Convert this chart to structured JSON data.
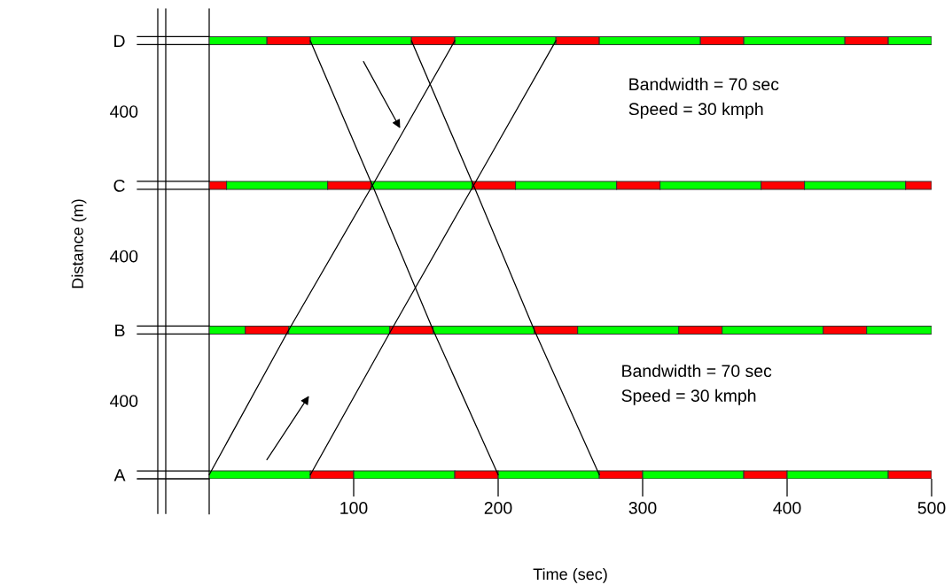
{
  "chart_data": {
    "type": "bar",
    "orientation": "horizontal",
    "stacked": true,
    "xlabel": "Time (sec)",
    "ylabel": "Distance (m)",
    "categories": [
      "D",
      "C",
      "B",
      "A"
    ],
    "xlim": [
      0,
      500
    ],
    "xticks": [
      100,
      200,
      300,
      400,
      500
    ],
    "series": [
      {
        "colors": [
          "#00ff00",
          "#ff0000",
          "#00ff00",
          "#00ff00"
        ],
        "values": [
          40,
          12,
          25,
          70
        ]
      },
      {
        "colors": [
          "#ff0000",
          "#00ff00",
          "#ff0000",
          "#ff0000"
        ],
        "values": [
          30,
          70,
          30,
          30
        ]
      },
      {
        "colors": [
          "#00ff00",
          "#ff0000",
          "#00ff00",
          "#00ff00"
        ],
        "values": [
          70,
          30,
          70,
          70
        ]
      },
      {
        "colors": [
          "#ff0000",
          "#00ff00",
          "#ff0000",
          "#ff0000"
        ],
        "values": [
          30,
          70,
          30,
          30
        ]
      },
      {
        "colors": [
          "#00ff00",
          "#ff0000",
          "#00ff00",
          "#00ff00"
        ],
        "values": [
          70,
          30,
          70,
          70
        ]
      },
      {
        "colors": [
          "#ff0000",
          "#00ff00",
          "#ff0000",
          "#ff0000"
        ],
        "values": [
          30,
          70,
          30,
          30
        ]
      },
      {
        "colors": [
          "#00ff00",
          "#ff0000",
          "#00ff00",
          "#00ff00"
        ],
        "values": [
          70,
          30,
          70,
          70
        ]
      },
      {
        "colors": [
          "#ff0000",
          "#00ff00",
          "#ff0000",
          "#ff0000"
        ],
        "values": [
          30,
          70,
          30,
          30
        ]
      },
      {
        "colors": [
          "#00ff00",
          "#ff0000",
          "#00ff00",
          "#00ff00"
        ],
        "values": [
          70,
          30,
          70,
          70
        ]
      },
      {
        "colors": [
          "#ff0000",
          "#00ff00",
          "#ff0000",
          "#ff0000"
        ],
        "values": [
          30,
          70,
          30,
          30
        ]
      },
      {
        "colors": [
          "#00ff00",
          "#ff0000",
          "#00ff00",
          null
        ],
        "values": [
          30,
          18,
          45,
          null
        ]
      },
      {
        "type": "line",
        "color": "#000000",
        "values": [
          170,
          113,
          55,
          0
        ]
      },
      {
        "type": "line",
        "color": "#000000",
        "values": [
          240,
          183,
          126,
          70
        ]
      },
      {
        "type": "line",
        "color": "#000000",
        "values": [
          70,
          113,
          155,
          200
        ]
      },
      {
        "type": "line",
        "color": "#000000",
        "values": [
          140,
          183,
          225,
          270
        ]
      }
    ],
    "annotations": [
      "400",
      "400",
      "400",
      "Bandwidth = 70 sec\nSpeed = 30 kmph",
      "Bandwidth = 70 sec\nSpeed = 30 kmph"
    ]
  }
}
